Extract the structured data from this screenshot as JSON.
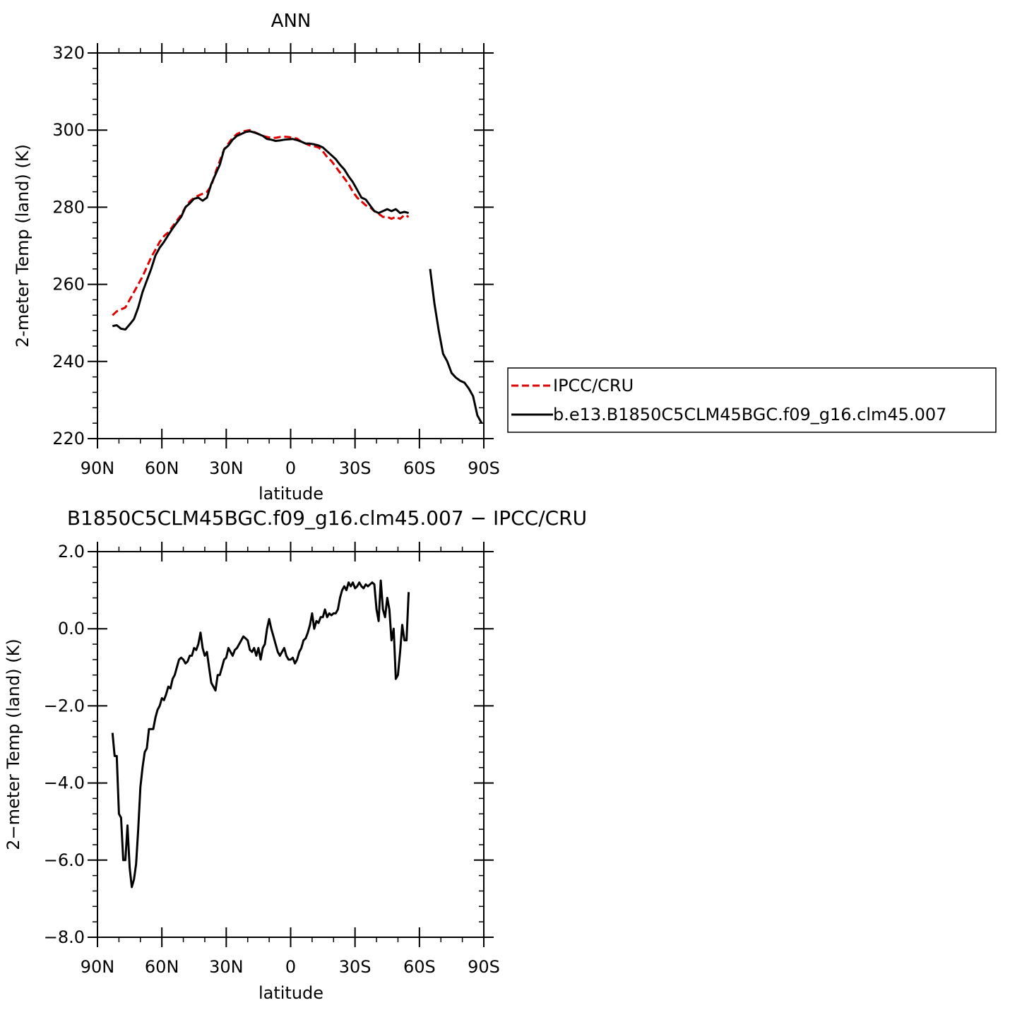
{
  "chart_data": [
    {
      "type": "line",
      "title": "ANN",
      "xlabel": "latitude",
      "ylabel": "2-meter Temp (land) (K)",
      "ylim": [
        220,
        320
      ],
      "yticks": [
        220,
        240,
        260,
        280,
        300,
        320
      ],
      "y_tick_labels": [
        "220",
        "240",
        "260",
        "280",
        "300",
        "320"
      ],
      "xlim": [
        90,
        -90
      ],
      "xticks": [
        90,
        60,
        30,
        0,
        -30,
        -60,
        -90
      ],
      "x_tick_labels": [
        "90N",
        "60N",
        "30N",
        "0",
        "30S",
        "60S",
        "90S"
      ],
      "legend": {
        "position": "right",
        "entries": [
          "IPCC/CRU",
          "b.e13.B1850C5CLM45BGC.f09_g16.clm45.007"
        ]
      },
      "series": [
        {
          "name": "IPCC/CRU",
          "color": "#e00000",
          "dash": "dashed",
          "x": [
            83,
            81,
            79,
            77,
            75,
            73,
            71,
            69,
            67,
            65,
            63,
            61,
            59,
            57,
            55,
            53,
            51,
            49,
            47,
            45,
            43,
            41,
            39,
            37,
            35,
            33,
            31,
            29,
            27,
            25,
            23,
            21,
            19,
            17,
            15,
            13,
            11,
            9,
            7,
            5,
            3,
            1,
            -1,
            -3,
            -5,
            -7,
            -9,
            -11,
            -13,
            -15,
            -17,
            -19,
            -21,
            -23,
            -25,
            -27,
            -29,
            -31,
            -33,
            -35,
            -37,
            -39,
            -41,
            -43,
            -45,
            -47,
            -49,
            -51,
            -53,
            -55
          ],
          "y": [
            252,
            253,
            253.5,
            254,
            256,
            258,
            260,
            262,
            264.5,
            267,
            269,
            271,
            272.5,
            273.5,
            275,
            276.5,
            278,
            280,
            281.5,
            282.5,
            283,
            283.5,
            284,
            285.5,
            289,
            292,
            295,
            296.5,
            298,
            299,
            299.5,
            299.8,
            300,
            299.5,
            299,
            298.5,
            298.2,
            298,
            298,
            298.2,
            298.3,
            298.2,
            298,
            297.8,
            297,
            296.5,
            296,
            295.8,
            295.5,
            294.5,
            293,
            292,
            290.5,
            289,
            287.5,
            286,
            284,
            282.5,
            281.5,
            280.5,
            280,
            279,
            278.3,
            277.5,
            277.5,
            277,
            277.5,
            277,
            278,
            277.5
          ]
        },
        {
          "name": "b.e13.B1850C5CLM45BGC.f09_g16.clm45.007",
          "color": "#000000",
          "dash": "solid",
          "x": [
            83,
            81,
            79,
            77,
            75,
            73,
            71,
            69,
            67,
            65,
            63,
            61,
            59,
            57,
            55,
            53,
            51,
            49,
            47,
            45,
            43,
            41,
            39,
            37,
            35,
            33,
            31,
            29,
            27,
            25,
            23,
            21,
            19,
            17,
            15,
            13,
            11,
            9,
            7,
            5,
            3,
            1,
            -1,
            -3,
            -5,
            -7,
            -9,
            -11,
            -13,
            -15,
            -17,
            -19,
            -21,
            -23,
            -25,
            -27,
            -29,
            -31,
            -33,
            -35,
            -37,
            -39,
            -41,
            -43,
            -45,
            -47,
            -49,
            -51,
            -53,
            -55,
            null,
            -65,
            -67,
            -69,
            -71,
            -73,
            -75,
            -77,
            -79,
            -81,
            -83,
            -85,
            -87,
            -89
          ],
          "y": [
            249.2,
            249.4,
            248.5,
            248.3,
            249.6,
            251,
            254,
            258,
            261,
            264,
            267.5,
            269.5,
            271,
            272.8,
            274.5,
            276,
            277.5,
            280,
            281,
            282.2,
            282.5,
            281.7,
            282.5,
            286,
            288.5,
            291,
            295,
            296,
            297.5,
            298.5,
            299,
            299.5,
            299.7,
            299.4,
            299,
            298.5,
            297.7,
            297.5,
            297.2,
            297.3,
            297.5,
            297.6,
            297.7,
            297.4,
            297,
            296.5,
            296.5,
            296.3,
            296,
            295.5,
            294.5,
            293.5,
            292.5,
            291,
            289.8,
            288,
            286.5,
            284.5,
            282.5,
            282,
            280.5,
            279,
            278.5,
            279,
            279.5,
            279,
            279.5,
            278.5,
            278.8,
            278.5,
            null,
            264,
            255,
            248,
            242,
            240,
            237,
            235.8,
            235,
            234.5,
            233,
            231,
            226,
            224
          ]
        }
      ]
    },
    {
      "type": "line",
      "title": "B1850C5CLM45BGC.f09_g16.clm45.007 − IPCC/CRU",
      "xlabel": "latitude",
      "ylabel": "2−meter Temp (land) (K)",
      "ylim": [
        -8,
        2
      ],
      "yticks": [
        -8,
        -6,
        -4,
        -2,
        0,
        2
      ],
      "y_tick_labels": [
        "−8.0",
        "−6.0",
        "−4.0",
        "−2.0",
        "0.0",
        "2.0"
      ],
      "xlim": [
        90,
        -90
      ],
      "xticks": [
        90,
        60,
        30,
        0,
        -30,
        -60,
        -90
      ],
      "x_tick_labels": [
        "90N",
        "60N",
        "30N",
        "0",
        "30S",
        "60S",
        "90S"
      ],
      "series": [
        {
          "color": "#000000",
          "dash": "solid",
          "x": [
            83,
            82,
            81,
            80,
            79,
            78,
            77,
            76,
            75,
            74,
            73,
            72,
            71,
            70,
            69,
            68,
            67,
            66,
            65,
            64,
            63,
            62,
            61,
            60,
            59,
            58,
            57,
            56,
            55,
            54,
            53,
            52,
            51,
            50,
            49,
            48,
            47,
            46,
            45,
            44,
            43,
            42,
            41,
            40,
            39,
            38,
            37,
            36,
            35,
            34,
            33,
            32,
            31,
            30,
            29,
            28,
            27,
            26,
            25,
            24,
            23,
            22,
            21,
            20,
            19,
            18,
            17,
            16,
            15,
            14,
            13,
            12,
            11,
            10,
            9,
            8,
            7,
            6,
            5,
            4,
            3,
            2,
            1,
            0,
            -1,
            -2,
            -3,
            -4,
            -5,
            -6,
            -7,
            -8,
            -9,
            -10,
            -11,
            -12,
            -13,
            -14,
            -15,
            -16,
            -17,
            -18,
            -19,
            -20,
            -21,
            -22,
            -23,
            -24,
            -25,
            -26,
            -27,
            -28,
            -29,
            -30,
            -31,
            -32,
            -33,
            -34,
            -35,
            -36,
            -37,
            -38,
            -39,
            -40,
            -41,
            -42,
            -43,
            -44,
            -45,
            -46,
            -47,
            -48,
            -49,
            -50,
            -51,
            -52,
            -53,
            -54,
            -55
          ],
          "y": [
            -2.7,
            -3.3,
            -3.3,
            -4.8,
            -4.9,
            -6.0,
            -6.0,
            -5.1,
            -6.2,
            -6.7,
            -6.5,
            -6.1,
            -5.2,
            -4.1,
            -3.6,
            -3.2,
            -3.1,
            -2.6,
            -2.6,
            -2.6,
            -2.3,
            -2.1,
            -2.0,
            -1.8,
            -1.85,
            -1.7,
            -1.5,
            -1.55,
            -1.3,
            -1.2,
            -1.0,
            -0.8,
            -0.75,
            -0.8,
            -0.9,
            -0.85,
            -0.7,
            -0.7,
            -0.5,
            -0.55,
            -0.4,
            -0.1,
            -0.5,
            -0.7,
            -0.6,
            -1.0,
            -1.4,
            -1.5,
            -1.6,
            -1.2,
            -1.2,
            -1.0,
            -0.8,
            -0.75,
            -0.5,
            -0.6,
            -0.7,
            -0.55,
            -0.5,
            -0.4,
            -0.3,
            -0.2,
            -0.25,
            -0.3,
            -0.55,
            -0.6,
            -0.5,
            -0.7,
            -0.5,
            -0.8,
            -0.5,
            -0.4,
            0.0,
            0.25,
            0.0,
            -0.2,
            -0.4,
            -0.6,
            -0.7,
            -0.6,
            -0.5,
            -0.7,
            -0.8,
            -0.8,
            -0.75,
            -0.9,
            -0.8,
            -0.6,
            -0.5,
            -0.3,
            -0.25,
            -0.1,
            0.1,
            0.4,
            0.0,
            0.2,
            0.15,
            0.3,
            0.3,
            0.5,
            0.3,
            0.4,
            0.35,
            0.4,
            0.4,
            0.5,
            0.8,
            1.0,
            1.1,
            1.0,
            1.2,
            1.1,
            1.2,
            1.05,
            1.1,
            1.2,
            1.1,
            1.05,
            1.15,
            1.1,
            1.15,
            1.2,
            1.15,
            0.5,
            0.2,
            1.25,
            0.5,
            0.3,
            0.8,
            0.5,
            -0.3,
            0.0,
            -1.3,
            -1.2,
            -0.6,
            0.1,
            -0.3,
            -0.3,
            0.95
          ]
        }
      ]
    }
  ]
}
